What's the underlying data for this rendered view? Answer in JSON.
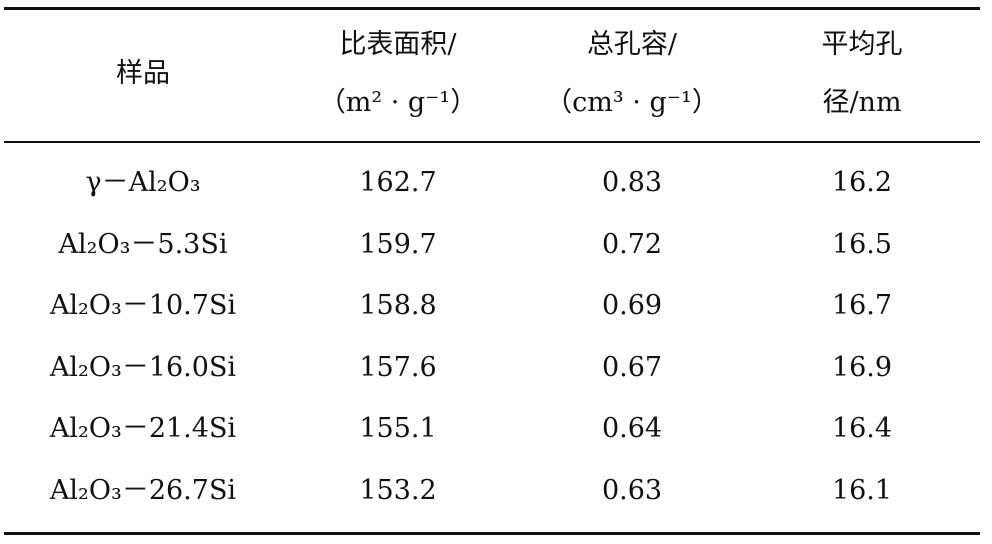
{
  "table": {
    "header": [
      [
        "样品"
      ],
      [
        "比表面积/",
        "（m² · g⁻¹）"
      ],
      [
        "总孔容/",
        "（cm³ · g⁻¹）"
      ],
      [
        "平均孔",
        "径/nm"
      ]
    ],
    "rows": [
      [
        "γ－Al₂O₃",
        "162.7",
        "0.83",
        "16.2"
      ],
      [
        "Al₂O₃－5.3Si",
        "159.7",
        "0.72",
        "16.5"
      ],
      [
        "Al₂O₃－10.7Si",
        "158.8",
        "0.69",
        "16.7"
      ],
      [
        "Al₂O₃－16.0Si",
        "157.6",
        "0.67",
        "16.9"
      ],
      [
        "Al₂O₃－21.4Si",
        "155.1",
        "0.64",
        "16.4"
      ],
      [
        "Al₂O₃－26.7Si",
        "153.2",
        "0.63",
        "16.1"
      ]
    ]
  }
}
